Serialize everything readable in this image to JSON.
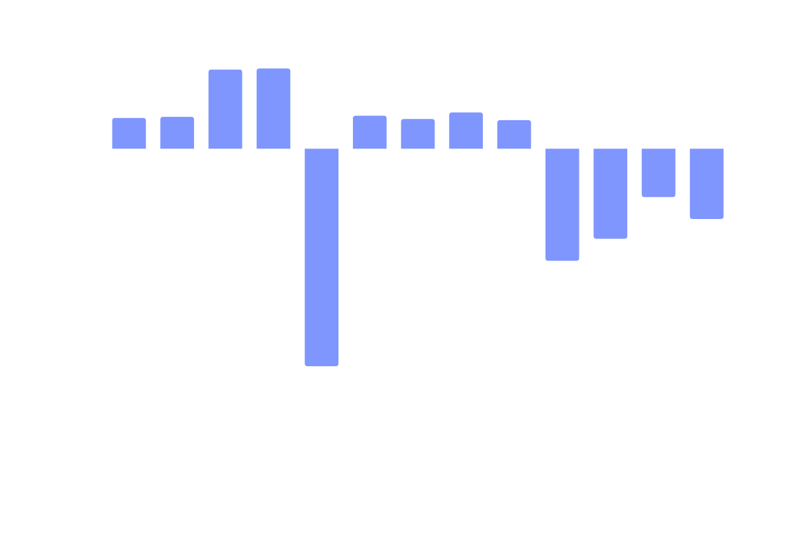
{
  "chart_data": {
    "type": "bar",
    "values": [
      14,
      14.5,
      36,
      36.5,
      -99,
      15,
      13.5,
      16.5,
      13,
      -51,
      -41,
      -22,
      -32
    ],
    "ylim": [
      -115,
      40
    ],
    "bar_color": "#7f96fe",
    "background": "#ffffff",
    "grid": false,
    "axes_visible": false,
    "legend": "none"
  }
}
